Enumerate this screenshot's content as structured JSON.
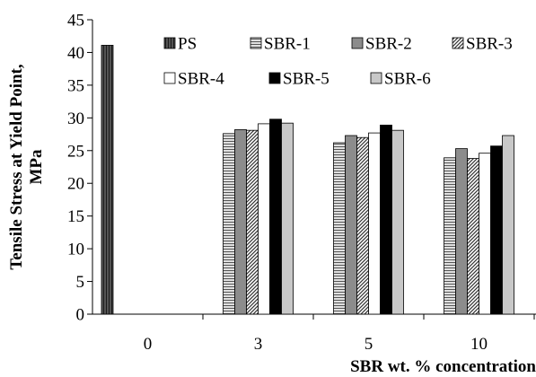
{
  "chart_data": {
    "type": "bar",
    "title": "",
    "xlabel": "SBR wt. % concentration",
    "ylabel_lines": [
      "Tensile Stress at Yield Point,",
      "MPa"
    ],
    "categories": [
      "0",
      "3",
      "5",
      "10"
    ],
    "ylim": [
      0,
      45
    ],
    "ytick_step": 5,
    "yticks": [
      "0",
      "5",
      "10",
      "15",
      "20",
      "25",
      "30",
      "35",
      "40",
      "45"
    ],
    "grid": false,
    "legend_position": "top-right",
    "series": [
      {
        "name": "PS",
        "pattern": "vlines-dark",
        "values": [
          41.1,
          null,
          null,
          null
        ]
      },
      {
        "name": "SBR-1",
        "pattern": "hlines",
        "values": [
          null,
          27.6,
          26.2,
          23.9
        ]
      },
      {
        "name": "SBR-2",
        "pattern": "gray",
        "values": [
          null,
          28.2,
          27.3,
          25.3
        ]
      },
      {
        "name": "SBR-3",
        "pattern": "diag",
        "values": [
          null,
          28.1,
          27.0,
          23.8
        ]
      },
      {
        "name": "SBR-4",
        "pattern": "white",
        "values": [
          null,
          29.1,
          27.7,
          24.6
        ]
      },
      {
        "name": "SBR-5",
        "pattern": "black",
        "values": [
          null,
          29.8,
          28.9,
          25.7
        ]
      },
      {
        "name": "SBR-6",
        "pattern": "lightgray",
        "values": [
          null,
          29.2,
          28.1,
          27.3
        ]
      }
    ]
  }
}
